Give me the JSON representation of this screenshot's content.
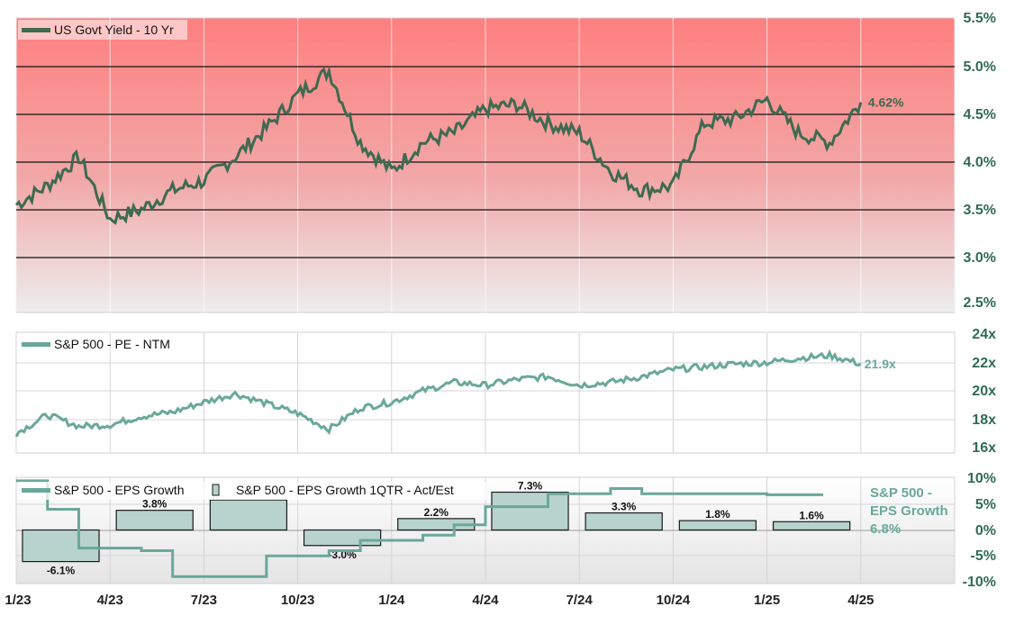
{
  "chart_data": [
    {
      "type": "line",
      "legend": "US Govt Yield - 10 Yr",
      "y_ticks": [
        "5.5%",
        "5.0%",
        "4.5%",
        "4.0%",
        "3.5%",
        "3.0%",
        "2.5%"
      ],
      "ylim": [
        2.5,
        5.5
      ],
      "last_value_label": "4.62%",
      "line_color": "#3d6a50",
      "series": [
        {
          "x": [
            "1/23",
            "2/23",
            "3/23",
            "4/23",
            "5/23",
            "6/23",
            "7/23",
            "8/23",
            "9/23",
            "10/23",
            "11/23",
            "12/23",
            "1/24",
            "2/24",
            "3/24",
            "4/24",
            "5/24",
            "6/24",
            "7/24",
            "8/24",
            "9/24",
            "10/24",
            "11/24",
            "12/24",
            "1/25",
            "2/25",
            "3/25",
            "4/25"
          ],
          "values": [
            3.55,
            3.75,
            4.05,
            3.4,
            3.5,
            3.7,
            3.8,
            4.05,
            4.35,
            4.7,
            4.95,
            4.2,
            3.9,
            4.2,
            4.3,
            4.55,
            4.6,
            4.4,
            4.3,
            3.9,
            3.7,
            3.75,
            4.4,
            4.45,
            4.65,
            4.3,
            4.2,
            4.62
          ]
        }
      ]
    },
    {
      "type": "line",
      "legend": "S&P 500 - PE - NTM",
      "y_ticks": [
        "24x",
        "22x",
        "20x",
        "18x",
        "16x"
      ],
      "ylim": [
        16,
        24
      ],
      "last_value_label": "21.9x",
      "line_color": "#6aa89a",
      "series": [
        {
          "x": [
            "1/23",
            "2/23",
            "3/23",
            "4/23",
            "5/23",
            "6/23",
            "7/23",
            "8/23",
            "9/23",
            "10/23",
            "11/23",
            "12/23",
            "1/24",
            "2/24",
            "3/24",
            "4/24",
            "5/24",
            "6/24",
            "7/24",
            "8/24",
            "9/24",
            "10/24",
            "11/24",
            "12/24",
            "1/25",
            "2/25",
            "3/25",
            "4/25"
          ],
          "values": [
            17.0,
            18.3,
            17.5,
            17.6,
            18.2,
            18.5,
            19.2,
            19.8,
            19.1,
            18.4,
            17.3,
            18.8,
            19.2,
            20.0,
            20.6,
            20.4,
            20.8,
            21.0,
            20.4,
            20.6,
            21.0,
            21.5,
            21.7,
            21.9,
            22.0,
            22.3,
            22.5,
            21.9
          ]
        }
      ]
    },
    {
      "type": "bar",
      "legend_line": "S&P 500 - EPS Growth",
      "legend_bar": "S&P 500 - EPS Growth 1QTR - Act/Est",
      "y_ticks": [
        "10%",
        "5%",
        "0%",
        "-5%",
        "-10%"
      ],
      "ylim": [
        -10,
        10
      ],
      "bars": [
        {
          "value": -6.1,
          "label": "-6.1%"
        },
        {
          "value": 3.8,
          "label": "3.8%"
        },
        {
          "value": 5.8,
          "label": ""
        },
        {
          "value": -3.0,
          "label": "-3.0%"
        },
        {
          "value": 2.2,
          "label": "2.2%"
        },
        {
          "value": 7.3,
          "label": "7.3%"
        },
        {
          "value": 3.3,
          "label": "3.3%"
        },
        {
          "value": 1.8,
          "label": "1.8%"
        },
        {
          "value": 1.6,
          "label": "1.6%"
        }
      ],
      "line_values": [
        {
          "x": "1/23",
          "y": 9.5
        },
        {
          "x": "2/23",
          "y": 4.0
        },
        {
          "x": "3/23",
          "y": -3.5
        },
        {
          "x": "4/23",
          "y": -3.5
        },
        {
          "x": "5/23",
          "y": -4.0
        },
        {
          "x": "6/23",
          "y": -9.0
        },
        {
          "x": "8/23",
          "y": -9.0
        },
        {
          "x": "9/23",
          "y": -5.0
        },
        {
          "x": "11/23",
          "y": -4.0
        },
        {
          "x": "12/23",
          "y": -2.0
        },
        {
          "x": "2/24",
          "y": -1.0
        },
        {
          "x": "3/24",
          "y": 1.0
        },
        {
          "x": "4/24",
          "y": 4.5
        },
        {
          "x": "6/24",
          "y": 7.0
        },
        {
          "x": "8/24",
          "y": 8.0
        },
        {
          "x": "9/24",
          "y": 7.0
        },
        {
          "x": "1/25",
          "y": 6.8
        }
      ],
      "note_lines": [
        "S&P 500 -",
        "EPS Growth",
        "6.8%"
      ]
    }
  ],
  "x_axis": {
    "ticks": [
      "1/23",
      "4/23",
      "7/23",
      "10/23",
      "1/24",
      "4/24",
      "7/24",
      "10/24",
      "1/25",
      "4/25"
    ]
  },
  "colors": {
    "yield_line": "#3d6a50",
    "pe_line": "#6aa89a",
    "eps_line": "#6aa89a",
    "bar_fill": "#b8d3cd",
    "bar_stroke": "#1a1a1a",
    "panel1_top": "#ff7f7f",
    "panel1_bottom": "#ededed"
  }
}
